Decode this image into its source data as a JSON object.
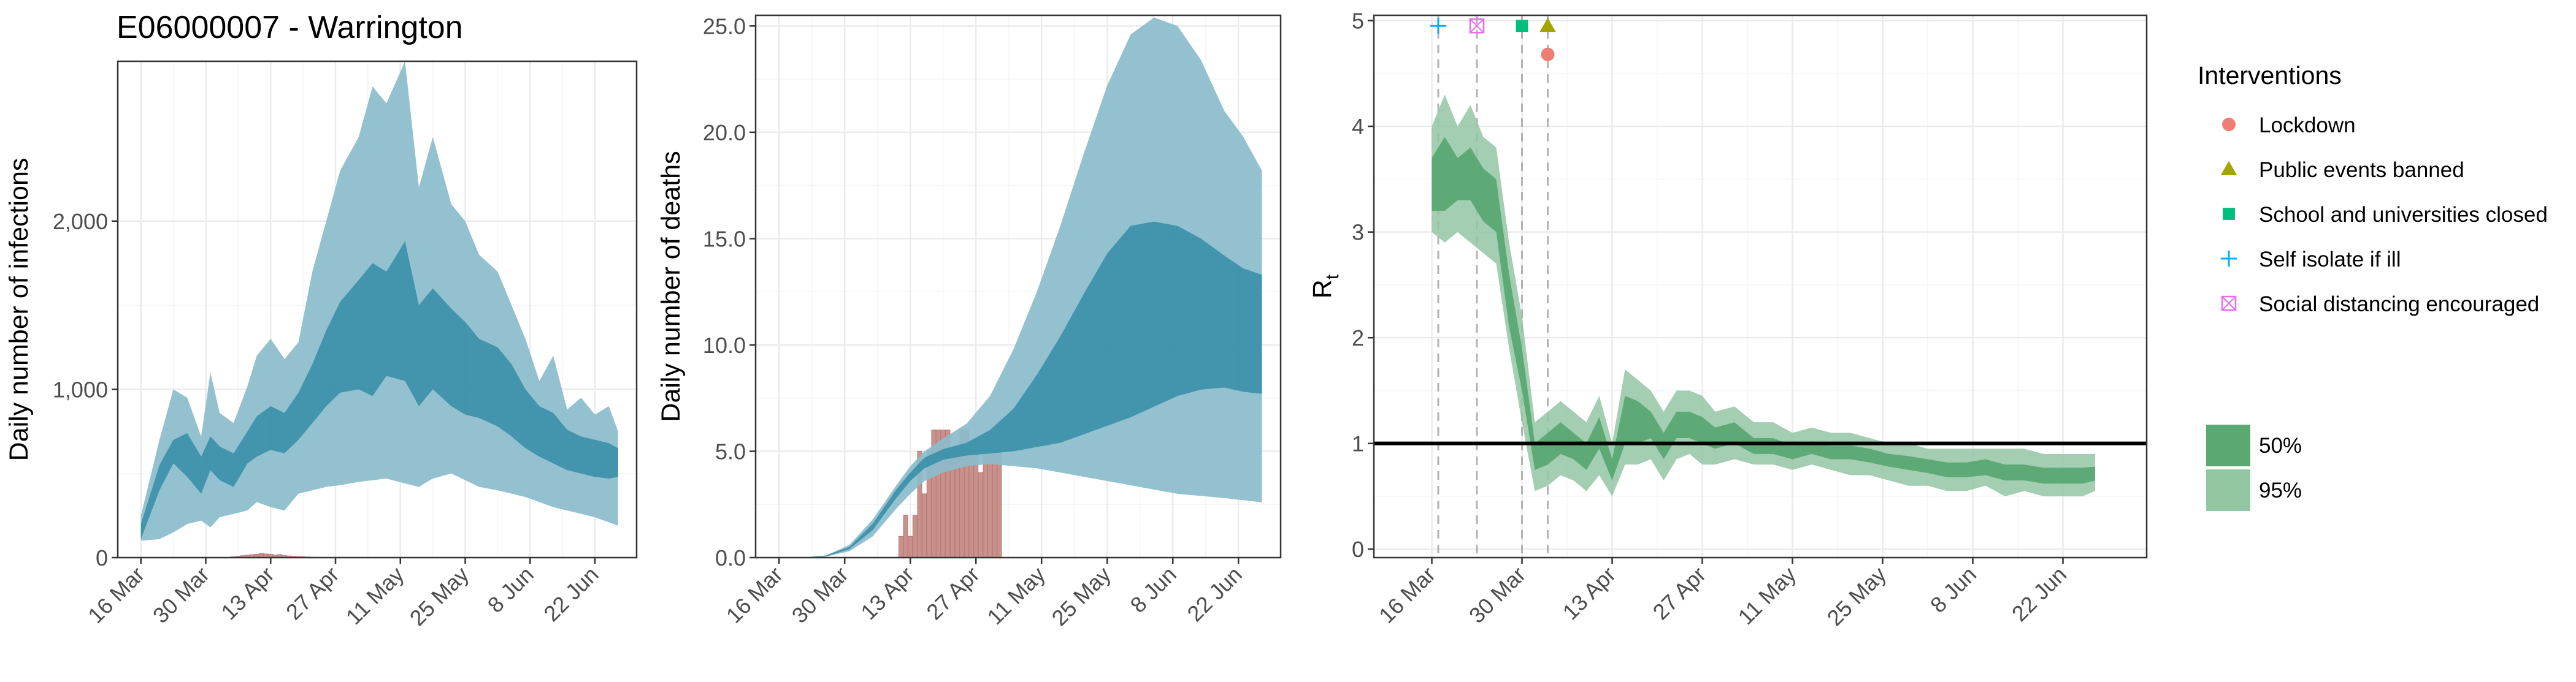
{
  "title": "E06000007 - Warrington",
  "colors": {
    "blue_ci95": "#8bbccc",
    "blue_ci50": "#3a8fa8",
    "bars": "#c9918c",
    "green_ci95": "#93c6a3",
    "green_ci50": "#5ba873",
    "green_line": "#3d8a55",
    "lockdown": "#f07c72",
    "public_events": "#a3a500",
    "school": "#00bf7d",
    "self_isolate": "#00b0f6",
    "social_distancing": "#e76bf3",
    "grid_major": "#ebebeb",
    "grid_minor": "#f5f5f5"
  },
  "chart_data": [
    {
      "id": "infections",
      "type": "area",
      "ylabel": "Daily number of infections",
      "x_tick_labels": [
        "16 Mar",
        "30 Mar",
        "13 Apr",
        "27 Apr",
        "11 May",
        "25 May",
        "8 Jun",
        "22 Jun"
      ],
      "y_tick_labels": [
        "0",
        "1,000",
        "2,000"
      ],
      "ylim": [
        0,
        2950
      ],
      "xlim_days": [
        0,
        112
      ],
      "x_days": [
        5,
        9,
        12,
        15,
        18,
        20,
        22,
        25,
        28,
        30,
        33,
        36,
        39,
        42,
        45,
        48,
        52,
        55,
        58,
        62,
        65,
        68,
        72,
        75,
        78,
        82,
        85,
        88,
        91,
        94,
        97,
        100,
        103,
        106,
        108
      ],
      "series": [
        {
          "band": "95",
          "lower": [
            100,
            110,
            150,
            200,
            220,
            180,
            240,
            260,
            280,
            330,
            300,
            280,
            380,
            400,
            420,
            430,
            450,
            460,
            470,
            440,
            420,
            470,
            500,
            460,
            420,
            400,
            380,
            360,
            330,
            300,
            280,
            260,
            240,
            210,
            190
          ],
          "upper": [
            250,
            700,
            1000,
            950,
            720,
            1100,
            860,
            800,
            1020,
            1200,
            1300,
            1180,
            1280,
            1700,
            2000,
            2300,
            2500,
            2800,
            2700,
            2950,
            2200,
            2500,
            2100,
            2000,
            1800,
            1700,
            1500,
            1300,
            1050,
            1200,
            880,
            950,
            850,
            900,
            750
          ]
        },
        {
          "band": "50",
          "lower": [
            110,
            400,
            560,
            480,
            380,
            520,
            460,
            420,
            560,
            600,
            640,
            620,
            700,
            800,
            900,
            980,
            1000,
            960,
            1080,
            1050,
            900,
            1000,
            900,
            850,
            830,
            780,
            720,
            650,
            600,
            560,
            520,
            500,
            480,
            470,
            480
          ],
          "upper": [
            200,
            550,
            700,
            740,
            600,
            720,
            660,
            620,
            750,
            840,
            900,
            860,
            980,
            1150,
            1350,
            1520,
            1650,
            1750,
            1700,
            1880,
            1500,
            1600,
            1480,
            1400,
            1300,
            1250,
            1150,
            1000,
            900,
            860,
            760,
            720,
            700,
            680,
            650
          ]
        }
      ],
      "bars_days": [
        25,
        26,
        27,
        28,
        29,
        30,
        31,
        32,
        33,
        34,
        35,
        36,
        37,
        38,
        39,
        40,
        41,
        42
      ],
      "bars_values": [
        5,
        8,
        12,
        15,
        18,
        20,
        25,
        22,
        20,
        15,
        18,
        12,
        10,
        8,
        6,
        5,
        4,
        3
      ]
    },
    {
      "id": "deaths",
      "type": "area",
      "ylabel": "Daily number of deaths",
      "x_tick_labels": [
        "16 Mar",
        "30 Mar",
        "13 Apr",
        "27 Apr",
        "11 May",
        "25 May",
        "8 Jun",
        "22 Jun"
      ],
      "y_tick_labels": [
        "0.0",
        "5.0",
        "10.0",
        "15.0",
        "20.0",
        "25.0"
      ],
      "ylim": [
        0,
        25.5
      ],
      "xlim_days": [
        0,
        112
      ],
      "x_days": [
        7,
        10,
        15,
        20,
        25,
        30,
        33,
        36,
        40,
        45,
        50,
        55,
        60,
        65,
        70,
        75,
        80,
        85,
        90,
        95,
        100,
        104,
        108
      ],
      "series": [
        {
          "band": "95",
          "lower": [
            0,
            0,
            0.05,
            0.3,
            1.0,
            2.3,
            3.0,
            3.6,
            4.0,
            4.3,
            4.4,
            4.3,
            4.2,
            4.0,
            3.8,
            3.6,
            3.4,
            3.2,
            3.0,
            2.9,
            2.8,
            2.7,
            2.6
          ],
          "upper": [
            0,
            0,
            0.1,
            0.6,
            1.8,
            3.4,
            4.3,
            5.0,
            5.6,
            6.3,
            7.6,
            9.8,
            12.5,
            15.6,
            19.0,
            22.2,
            24.6,
            25.4,
            25.0,
            23.4,
            21.0,
            19.8,
            18.2
          ]
        },
        {
          "band": "50",
          "lower": [
            0,
            0,
            0.05,
            0.4,
            1.3,
            2.8,
            3.6,
            4.2,
            4.6,
            4.8,
            4.9,
            5.0,
            5.2,
            5.4,
            5.8,
            6.2,
            6.6,
            7.1,
            7.6,
            7.9,
            8.0,
            7.8,
            7.7
          ],
          "upper": [
            0,
            0,
            0.1,
            0.5,
            1.6,
            3.2,
            4.0,
            4.7,
            5.1,
            5.4,
            6.0,
            7.0,
            8.6,
            10.4,
            12.4,
            14.3,
            15.6,
            15.8,
            15.6,
            15.0,
            14.2,
            13.6,
            13.3
          ]
        }
      ],
      "bars_days": [
        31,
        32,
        33,
        34,
        35,
        36,
        37,
        38,
        39,
        40,
        41,
        42,
        43,
        44,
        45,
        46,
        47,
        48,
        49,
        50,
        51,
        52
      ],
      "bars_values": [
        1,
        2,
        1,
        2,
        5,
        3,
        5,
        6,
        6,
        6,
        6,
        5,
        5,
        6,
        6,
        5,
        5,
        4,
        5,
        5,
        5,
        5
      ]
    },
    {
      "id": "rt",
      "type": "area",
      "ylabel": "R",
      "ylabel_subscript": "t",
      "x_tick_labels": [
        "16 Mar",
        "30 Mar",
        "13 Apr",
        "27 Apr",
        "11 May",
        "25 May",
        "8 Jun",
        "22 Jun"
      ],
      "y_tick_labels": [
        "0",
        "1",
        "2",
        "3",
        "4",
        "5"
      ],
      "ylim": [
        -0.08,
        5.05
      ],
      "xlim_days": [
        -4,
        116
      ],
      "x_days": [
        5,
        7,
        9,
        11,
        13,
        15,
        17,
        19,
        21,
        23,
        25,
        27,
        29,
        31,
        33,
        35,
        37,
        39,
        41,
        43,
        45,
        47,
        49,
        52,
        55,
        58,
        61,
        64,
        67,
        70,
        73,
        76,
        79,
        82,
        85,
        88,
        91,
        94,
        97,
        100,
        103,
        106,
        108
      ],
      "series": [
        {
          "band": "95",
          "lower": [
            3.0,
            2.9,
            3.0,
            2.9,
            2.8,
            2.7,
            1.9,
            1.2,
            0.55,
            0.6,
            0.7,
            0.65,
            0.55,
            0.7,
            0.5,
            0.8,
            0.8,
            0.85,
            0.65,
            0.85,
            0.9,
            0.8,
            0.8,
            0.85,
            0.8,
            0.8,
            0.75,
            0.8,
            0.75,
            0.7,
            0.7,
            0.65,
            0.6,
            0.6,
            0.55,
            0.55,
            0.6,
            0.5,
            0.55,
            0.5,
            0.5,
            0.5,
            0.55
          ],
          "upper": [
            4.0,
            4.3,
            4.0,
            4.2,
            3.9,
            3.8,
            2.9,
            2.2,
            1.2,
            1.3,
            1.4,
            1.3,
            1.2,
            1.45,
            1.0,
            1.7,
            1.6,
            1.5,
            1.3,
            1.5,
            1.5,
            1.45,
            1.3,
            1.35,
            1.2,
            1.2,
            1.1,
            1.15,
            1.1,
            1.1,
            1.05,
            1.0,
            1.0,
            0.95,
            0.95,
            0.95,
            0.95,
            0.95,
            0.95,
            0.9,
            0.9,
            0.9,
            0.9
          ]
        },
        {
          "band": "50",
          "lower": [
            3.2,
            3.2,
            3.3,
            3.3,
            3.1,
            3.0,
            2.1,
            1.5,
            0.75,
            0.8,
            0.9,
            0.85,
            0.75,
            0.95,
            0.65,
            1.0,
            1.0,
            1.05,
            0.85,
            1.05,
            1.05,
            1.0,
            0.95,
            1.0,
            0.9,
            0.9,
            0.85,
            0.9,
            0.85,
            0.85,
            0.82,
            0.78,
            0.75,
            0.72,
            0.68,
            0.68,
            0.7,
            0.65,
            0.65,
            0.62,
            0.62,
            0.62,
            0.65
          ],
          "upper": [
            3.7,
            3.9,
            3.7,
            3.8,
            3.6,
            3.5,
            2.6,
            1.9,
            1.0,
            1.1,
            1.2,
            1.1,
            1.0,
            1.25,
            0.85,
            1.45,
            1.4,
            1.3,
            1.1,
            1.3,
            1.3,
            1.25,
            1.15,
            1.2,
            1.05,
            1.05,
            0.98,
            1.02,
            0.98,
            0.98,
            0.95,
            0.9,
            0.88,
            0.85,
            0.82,
            0.82,
            0.85,
            0.8,
            0.8,
            0.77,
            0.77,
            0.77,
            0.78
          ]
        }
      ],
      "reference_line": 1,
      "interventions": [
        {
          "name": "Self isolate if ill",
          "day": 6,
          "y": 4.95,
          "shape": "plus"
        },
        {
          "name": "Social distancing encouraged",
          "day": 12,
          "y": 4.95,
          "shape": "boxx"
        },
        {
          "name": "School and universities closed",
          "day": 19,
          "y": 4.95,
          "shape": "square"
        },
        {
          "name": "Public events banned",
          "day": 23,
          "y": 4.95,
          "shape": "triangle"
        },
        {
          "name": "Lockdown",
          "day": 23,
          "y": 4.68,
          "shape": "circle"
        }
      ]
    }
  ],
  "legend": {
    "title": "Interventions",
    "items": [
      {
        "label": "Lockdown",
        "shape": "circle",
        "color": "#f07c72"
      },
      {
        "label": "Public events banned",
        "shape": "triangle",
        "color": "#a3a500"
      },
      {
        "label": "School and universities closed",
        "shape": "square",
        "color": "#00bf7d"
      },
      {
        "label": "Self isolate if ill",
        "shape": "plus",
        "color": "#00b0f6"
      },
      {
        "label": "Social distancing encouraged",
        "shape": "boxx",
        "color": "#e76bf3"
      }
    ],
    "ci_items": [
      {
        "label": "50%",
        "color": "#5ba873"
      },
      {
        "label": "95%",
        "color": "#93c6a3"
      }
    ]
  }
}
